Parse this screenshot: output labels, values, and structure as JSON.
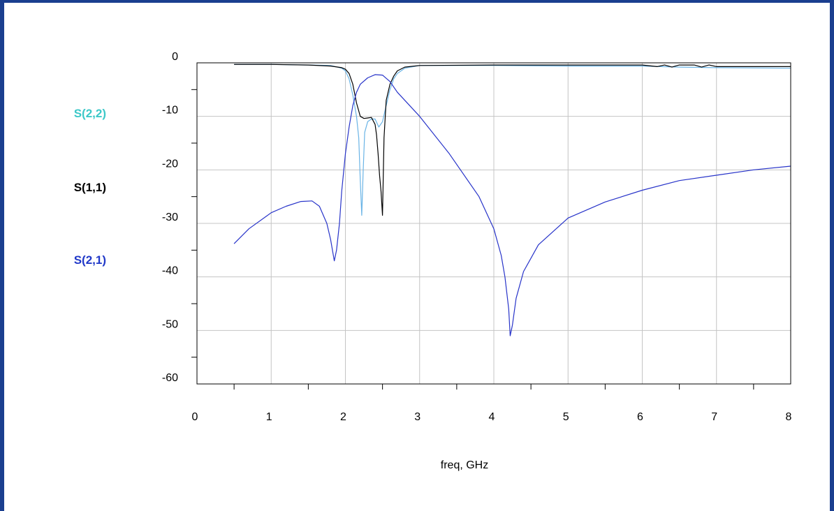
{
  "chart_data": {
    "type": "line",
    "title": "",
    "xlabel": "freq, GHz",
    "ylabel": "",
    "xlim": [
      0,
      8
    ],
    "ylim": [
      -60,
      0
    ],
    "xticks": [
      "0",
      "1",
      "2",
      "3",
      "4",
      "5",
      "6",
      "7",
      "8"
    ],
    "yticks": [
      "0",
      "-10",
      "-20",
      "-30",
      "-40",
      "-50",
      "-60"
    ],
    "grid": true,
    "legend_position": "left",
    "series": [
      {
        "name": "S(2,2)",
        "color": "#6ab4e6",
        "label_color": "#3cc8c8",
        "x": [
          0.5,
          1.0,
          1.5,
          1.8,
          1.95,
          2.0,
          2.05,
          2.1,
          2.15,
          2.18,
          2.2,
          2.22,
          2.24,
          2.26,
          2.3,
          2.35,
          2.4,
          2.45,
          2.5,
          2.55,
          2.6,
          2.65,
          2.7,
          2.8,
          3.0,
          4.0,
          5.0,
          6.0,
          6.5,
          7.0,
          8.0
        ],
        "y": [
          -0.3,
          -0.3,
          -0.4,
          -0.5,
          -1.0,
          -1.5,
          -3.0,
          -6.0,
          -10.0,
          -14.0,
          -22.0,
          -28.5,
          -20.0,
          -13.0,
          -11.0,
          -10.5,
          -10.5,
          -12.0,
          -11.0,
          -8.0,
          -5.0,
          -3.0,
          -2.0,
          -1.0,
          -0.5,
          -0.5,
          -0.6,
          -0.6,
          -0.8,
          -0.9,
          -1.0
        ]
      },
      {
        "name": "S(1,1)",
        "color": "#000000",
        "label_color": "#000000",
        "x": [
          0.5,
          1.0,
          1.5,
          1.8,
          1.95,
          2.0,
          2.05,
          2.1,
          2.15,
          2.2,
          2.25,
          2.3,
          2.35,
          2.4,
          2.42,
          2.44,
          2.46,
          2.48,
          2.5,
          2.52,
          2.55,
          2.6,
          2.65,
          2.7,
          2.8,
          3.0,
          4.0,
          5.0,
          6.0,
          6.2,
          6.3,
          6.4,
          6.5,
          6.7,
          6.8,
          6.9,
          7.0,
          8.0
        ],
        "y": [
          -0.3,
          -0.3,
          -0.4,
          -0.6,
          -0.9,
          -1.2,
          -2.0,
          -4.0,
          -7.5,
          -10.0,
          -10.4,
          -10.3,
          -10.2,
          -11.5,
          -13.5,
          -17.0,
          -21.0,
          -24.0,
          -28.5,
          -14.0,
          -7.0,
          -4.0,
          -2.5,
          -1.5,
          -0.8,
          -0.5,
          -0.4,
          -0.4,
          -0.4,
          -0.7,
          -0.4,
          -0.8,
          -0.4,
          -0.4,
          -0.8,
          -0.4,
          -0.7,
          -0.7
        ]
      },
      {
        "name": "S(2,1)",
        "color": "#2733c9",
        "label_color": "#2038c8",
        "x": [
          0.5,
          0.7,
          1.0,
          1.2,
          1.4,
          1.55,
          1.65,
          1.75,
          1.8,
          1.85,
          1.88,
          1.92,
          1.95,
          2.0,
          2.05,
          2.1,
          2.15,
          2.2,
          2.3,
          2.4,
          2.5,
          2.6,
          2.7,
          3.0,
          3.4,
          3.8,
          4.0,
          4.1,
          4.15,
          4.2,
          4.22,
          4.25,
          4.3,
          4.4,
          4.6,
          5.0,
          5.5,
          6.0,
          6.5,
          7.0,
          7.5,
          8.0
        ],
        "y": [
          -33.8,
          -31.0,
          -28.0,
          -26.8,
          -25.9,
          -25.8,
          -26.8,
          -30.0,
          -33.0,
          -37.0,
          -35.0,
          -30.0,
          -24.0,
          -17.0,
          -12.0,
          -8.0,
          -5.5,
          -4.0,
          -2.8,
          -2.2,
          -2.3,
          -3.5,
          -5.5,
          -10.0,
          -17.0,
          -25.0,
          -31.0,
          -36.0,
          -40.0,
          -46.0,
          -51.0,
          -49.0,
          -44.0,
          -39.0,
          -34.0,
          -29.0,
          -26.0,
          -23.8,
          -22.0,
          -21.0,
          -20.0,
          -19.3
        ]
      }
    ]
  }
}
